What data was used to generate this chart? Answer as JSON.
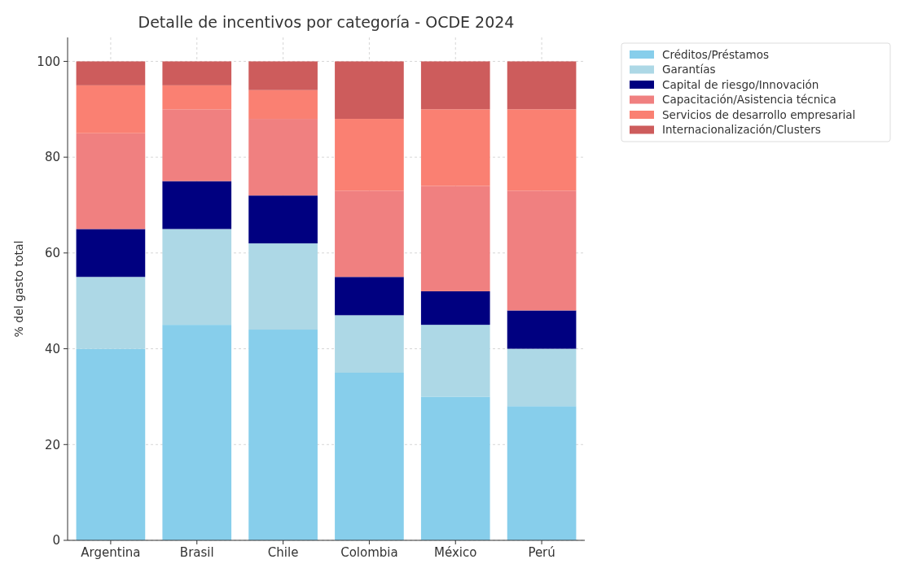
{
  "chart_data": {
    "type": "bar",
    "title": "Detalle de incentivos por categoría - OCDE 2024",
    "ylabel": "% del gasto total",
    "categories": [
      "Argentina",
      "Brasil",
      "Chile",
      "Colombia",
      "México",
      "Perú"
    ],
    "stacked": true,
    "series": [
      {
        "name": "Créditos/Préstamos",
        "color": "#87ceeb",
        "values": [
          40,
          45,
          44,
          35,
          30,
          28
        ]
      },
      {
        "name": "Garantías",
        "color": "#add8e6",
        "values": [
          15,
          20,
          18,
          12,
          15,
          12
        ]
      },
      {
        "name": "Capital de riesgo/Innovación",
        "color": "#000080",
        "values": [
          10,
          10,
          10,
          8,
          7,
          8
        ]
      },
      {
        "name": "Capacitación/Asistencia técnica",
        "color": "#f08080",
        "values": [
          20,
          15,
          16,
          18,
          22,
          25
        ]
      },
      {
        "name": "Servicios de desarrollo empresarial",
        "color": "#fa8072",
        "values": [
          10,
          5,
          6,
          15,
          16,
          17
        ]
      },
      {
        "name": "Internacionalización/Clusters",
        "color": "#cd5c5c",
        "values": [
          5,
          5,
          6,
          12,
          10,
          10
        ]
      }
    ],
    "ylim": [
      0,
      105
    ],
    "yticks": [
      0,
      20,
      40,
      60,
      80,
      100
    ],
    "grid": true,
    "legend": "top right"
  }
}
